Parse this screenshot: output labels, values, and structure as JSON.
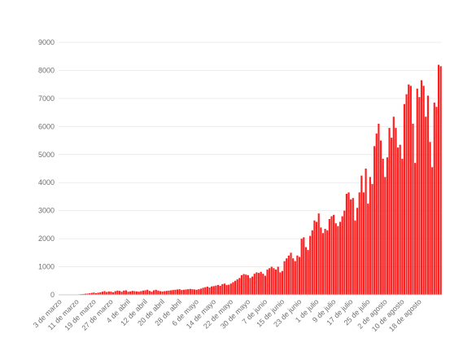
{
  "chart_data": {
    "type": "bar",
    "title": "",
    "xlabel": "",
    "ylabel": "",
    "ylim": [
      0,
      9000
    ],
    "yticks": [
      0,
      1000,
      2000,
      3000,
      4000,
      5000,
      6000,
      7000,
      8000,
      9000
    ],
    "grid": true,
    "legend": "none",
    "bar_color": "#ff1f1f",
    "x_tick_labels": [
      "3 de marzo",
      "11 de marzo",
      "19 de marzo",
      "27 de marzo",
      "4 de abril",
      "12 de abril",
      "20 de abril",
      "28 de abril",
      "6 de mayo",
      "14 de mayo",
      "22 de mayo",
      "30 de mayo",
      "7 de junio",
      "15 de junio",
      "23 de junio",
      "1 de julio",
      "9 de julio",
      "17 de julio",
      "25 de julio",
      "2 de agosto",
      "10 de agosto",
      "18 de agosto"
    ],
    "series": [
      {
        "values": [
          1,
          2,
          3,
          5,
          6,
          8,
          10,
          12,
          15,
          18,
          25,
          30,
          40,
          45,
          55,
          70,
          80,
          60,
          75,
          90,
          110,
          130,
          100,
          120,
          110,
          90,
          130,
          150,
          140,
          110,
          150,
          160,
          110,
          120,
          140,
          130,
          120,
          110,
          130,
          150,
          160,
          180,
          140,
          110,
          160,
          180,
          150,
          130,
          120,
          130,
          140,
          150,
          160,
          170,
          180,
          190,
          200,
          170,
          180,
          190,
          200,
          210,
          200,
          190,
          180,
          200,
          220,
          250,
          270,
          290,
          260,
          300,
          310,
          330,
          350,
          320,
          380,
          400,
          350,
          360,
          400,
          450,
          500,
          550,
          600,
          700,
          740,
          720,
          700,
          600,
          650,
          750,
          800,
          780,
          820,
          750,
          680,
          900,
          950,
          1000,
          950,
          900,
          1000,
          800,
          850,
          1200,
          1300,
          1400,
          1500,
          1300,
          1200,
          1400,
          1350,
          2000,
          2050,
          1700,
          1600,
          2100,
          2300,
          2650,
          2600,
          2900,
          2400,
          2200,
          2350,
          2300,
          2700,
          2800,
          2850,
          2550,
          2450,
          2600,
          2800,
          3000,
          3600,
          3650,
          3400,
          3450,
          2650,
          3100,
          3650,
          4250,
          3650,
          4500,
          3250,
          4200,
          3950,
          5300,
          5750,
          6100,
          5500,
          4850,
          4200,
          4900,
          5950,
          5600,
          6350,
          5950,
          5250,
          5350,
          4850,
          6800,
          7150,
          7500,
          7450,
          6100,
          4700,
          7350,
          7050,
          7650,
          7450,
          6350,
          7100,
          5450,
          4550,
          6850,
          6700,
          8200,
          8150
        ]
      }
    ]
  }
}
